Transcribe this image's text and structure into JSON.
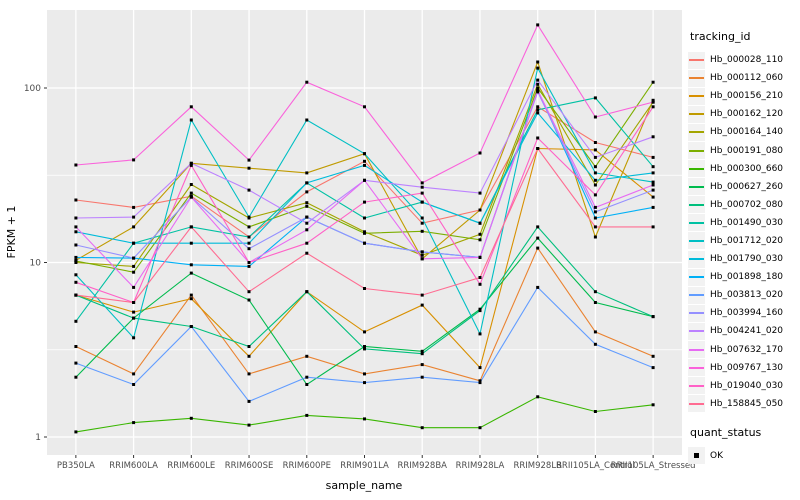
{
  "axes": {
    "x_title": "sample_name",
    "y_title": "FPKM + 1",
    "y_tick_labels": [
      "1",
      "10",
      "100"
    ],
    "x_tick_labels": [
      "PB350LA",
      "RRIM600LA",
      "RRIM600LE",
      "RRIM600SE",
      "RRIM600PE",
      "RRIM901LA",
      "RRIM928BA",
      "RRIM928LA",
      "RRIM928LB",
      "RRII105LA_Control",
      "RRII105LA_Stressed"
    ]
  },
  "legend": {
    "tracking_title": "tracking_id",
    "quant_title": "quant_status",
    "quant_ok_label": "OK"
  },
  "colors": {
    "panel_bg": "#EBEBEB",
    "grid": "#FFFFFF",
    "axis_text": "#4D4D4D",
    "tick_mark": "#333333",
    "legend_key_bg": "#F2F2F2",
    "marker": "#000000"
  },
  "chart_data": {
    "type": "line",
    "title": "",
    "xlabel": "sample_name",
    "ylabel": "FPKM + 1",
    "y_scale": "log10",
    "ylim": [
      0.79,
      285
    ],
    "y_major_ticks": [
      1,
      10,
      100
    ],
    "y_minor_ticks": [
      3.162,
      31.62
    ],
    "grid": "on",
    "legend_position": "right",
    "point_marker": {
      "shape": "square",
      "color": "#000000",
      "meaning": "quant_status OK"
    },
    "categories": [
      "PB350LA",
      "RRIM600LA",
      "RRIM600LE",
      "RRIM600SE",
      "RRIM600PE",
      "RRIM901LA",
      "RRIM928BA",
      "RRIM928LA",
      "RRIM928LB",
      "RRII105LA_Control",
      "RRII105LA_Stressed"
    ],
    "series": [
      {
        "name": "Hb_000028_110",
        "color": "#F8766D",
        "values": [
          22.8,
          20.7,
          24,
          14,
          25.4,
          38,
          16.8,
          20,
          78,
          48.7,
          40
        ]
      },
      {
        "name": "Hb_000112_060",
        "color": "#EA8331",
        "values": [
          3.3,
          2.3,
          6.5,
          2.3,
          2.9,
          2.3,
          2.6,
          2.1,
          12.1,
          4,
          2.9
        ]
      },
      {
        "name": "Hb_000156_210",
        "color": "#D89000",
        "values": [
          6.5,
          5.2,
          6.2,
          2.9,
          6.8,
          4,
          5.7,
          2.5,
          45,
          44.2,
          23.7
        ]
      },
      {
        "name": "Hb_000162_120",
        "color": "#C09B00",
        "values": [
          10.3,
          16,
          37,
          34.7,
          32.6,
          42,
          10.5,
          20,
          141,
          14,
          85
        ]
      },
      {
        "name": "Hb_000164_140",
        "color": "#A3A500",
        "values": [
          10,
          9.5,
          28,
          18,
          22,
          15,
          11,
          14.5,
          105,
          27.8,
          83
        ]
      },
      {
        "name": "Hb_000191_080",
        "color": "#7CAE00",
        "values": [
          10.2,
          8.8,
          25,
          16,
          21,
          14.7,
          15.1,
          13.5,
          100,
          35.4,
          108
        ]
      },
      {
        "name": "Hb_000300_660",
        "color": "#39B600",
        "values": [
          1.07,
          1.21,
          1.28,
          1.17,
          1.33,
          1.27,
          1.13,
          1.13,
          1.7,
          1.4,
          1.53
        ]
      },
      {
        "name": "Hb_000627_260",
        "color": "#00BB4E",
        "values": [
          2.2,
          4.8,
          8.7,
          6.1,
          2,
          3.3,
          3.1,
          5.4,
          13.8,
          5.9,
          4.9
        ]
      },
      {
        "name": "Hb_000702_080",
        "color": "#00BF7D",
        "values": [
          6.5,
          4.8,
          4.3,
          3.3,
          6.8,
          3.2,
          3,
          5.3,
          16,
          6.8,
          4.9
        ]
      },
      {
        "name": "Hb_001490_030",
        "color": "#00C1A3",
        "values": [
          4.6,
          12.9,
          16,
          14,
          28.6,
          18,
          22.2,
          16.8,
          75,
          87.7,
          35.4
        ]
      },
      {
        "name": "Hb_001712_020",
        "color": "#00BFC4",
        "values": [
          8.5,
          3.7,
          65.6,
          18.2,
          65.6,
          42,
          18,
          3.9,
          130,
          32.6,
          28.9
        ]
      },
      {
        "name": "Hb_001790_030",
        "color": "#00BBDA",
        "values": [
          15,
          12.9,
          12.9,
          12.9,
          28.6,
          36,
          22.2,
          16.8,
          72,
          29.6,
          32.6
        ]
      },
      {
        "name": "Hb_001898_180",
        "color": "#00B0F6",
        "values": [
          10.7,
          10.6,
          9.7,
          9.5,
          18.2,
          12.9,
          11.5,
          10.7,
          97,
          18,
          20.7
        ]
      },
      {
        "name": "Hb_003813_020",
        "color": "#619CFF",
        "values": [
          2.65,
          2,
          4.3,
          1.6,
          2.2,
          2.05,
          2.2,
          2.05,
          7.2,
          3.4,
          2.5
        ]
      },
      {
        "name": "Hb_003994_160",
        "color": "#9590FF",
        "values": [
          12.6,
          10.6,
          23.7,
          12,
          18.2,
          12.9,
          11.5,
          10.7,
          95,
          19.5,
          26
        ]
      },
      {
        "name": "Hb_004241_020",
        "color": "#BC81FF",
        "values": [
          18,
          18.2,
          37,
          26,
          16.8,
          29.6,
          27,
          25,
          111,
          40,
          52.5
        ]
      },
      {
        "name": "Hb_007632_170",
        "color": "#E76BF3",
        "values": [
          16,
          7.2,
          23.7,
          10,
          15.4,
          29.6,
          10.5,
          10.7,
          97,
          20.7,
          27.8
        ]
      },
      {
        "name": "Hb_009767_130",
        "color": "#FA62DB",
        "values": [
          36.2,
          38.7,
          78,
          38.6,
          108,
          78,
          28.6,
          42.4,
          230,
          68.2,
          83
        ]
      },
      {
        "name": "Hb_019040_030",
        "color": "#FF61C7",
        "values": [
          7.7,
          5.9,
          36,
          10,
          12.9,
          22.2,
          25,
          7.5,
          51.7,
          24.4,
          78
        ]
      },
      {
        "name": "Hb_158845_050",
        "color": "#FF6C92",
        "values": [
          6.5,
          5.9,
          16,
          6.8,
          11.3,
          7.1,
          6.5,
          8.2,
          45,
          16,
          16
        ]
      }
    ]
  }
}
